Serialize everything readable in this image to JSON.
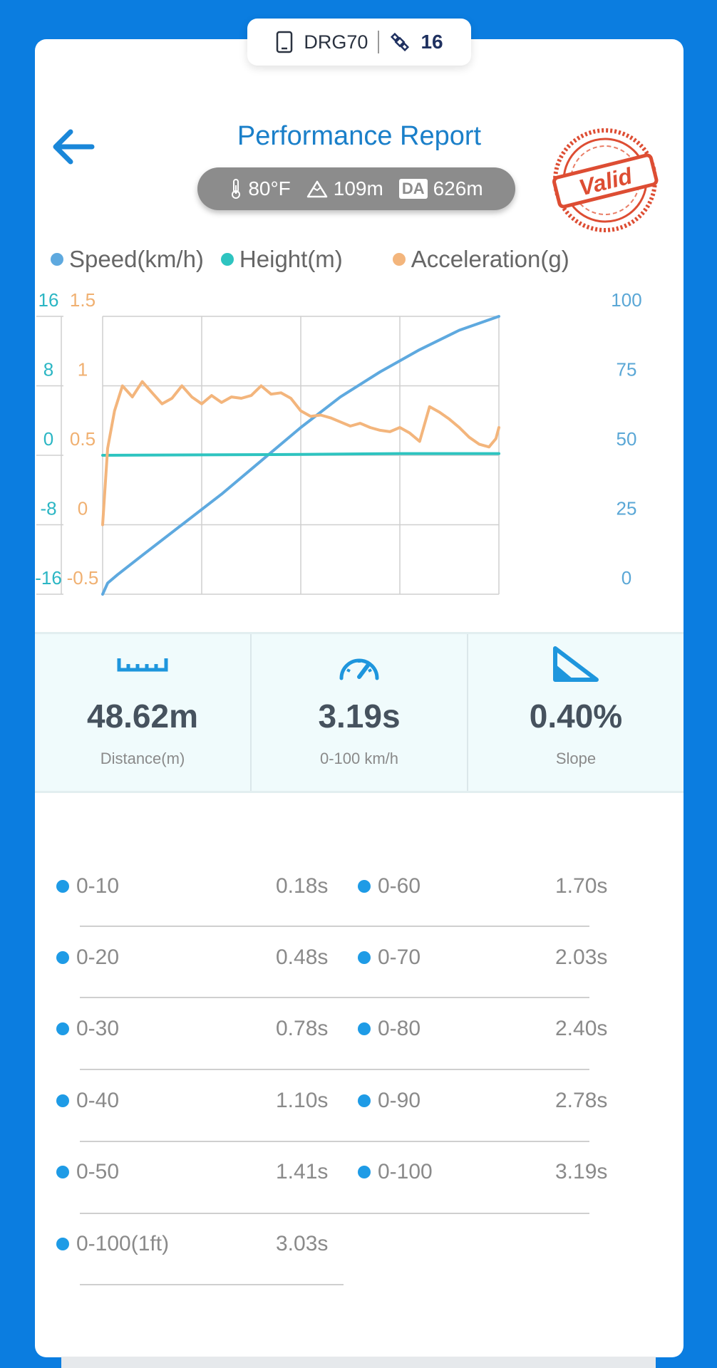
{
  "device": {
    "name": "DRG70",
    "satellites": "16",
    "icons": [
      "phone-icon",
      "satellite-icon"
    ]
  },
  "header": {
    "title": "Performance Report",
    "stamp_text": "Valid"
  },
  "conditions": {
    "temperature": "80°F",
    "altitude": "109m",
    "da_label": "DA",
    "density_altitude": "626m"
  },
  "legend": [
    {
      "label": "Speed(km/h)",
      "color": "#5ea9df"
    },
    {
      "label": "Height(m)",
      "color": "#2ec4c0"
    },
    {
      "label": "Acceleration(g)",
      "color": "#f3b57c"
    }
  ],
  "chart_data": {
    "type": "line",
    "x": [
      0,
      1,
      2,
      3,
      4
    ],
    "grid": true,
    "axes": {
      "left_outer": {
        "ticks": [
          "16",
          "8",
          "0",
          "-8",
          "-16"
        ],
        "range": [
          -16,
          16
        ],
        "color": "#2bb6c4"
      },
      "left_inner": {
        "ticks": [
          "1.5",
          "1",
          "0.5",
          "0",
          "-0.5"
        ],
        "range": [
          -0.5,
          1.5
        ],
        "color": "#f0b071"
      },
      "right": {
        "ticks": [
          "100",
          "75",
          "50",
          "25",
          "0"
        ],
        "range": [
          0,
          100
        ],
        "color": "#5aa7d6"
      }
    },
    "series": [
      {
        "name": "Speed(km/h)",
        "axis": "right",
        "color": "#5ea9df",
        "x": [
          0,
          0.05,
          0.15,
          0.4,
          0.8,
          1.2,
          1.6,
          2.0,
          2.4,
          2.8,
          3.2,
          3.6,
          4.0
        ],
        "y": [
          0,
          4,
          7,
          14,
          25,
          36,
          48,
          60,
          71,
          80,
          88,
          95,
          100
        ]
      },
      {
        "name": "Height(m)",
        "axis": "left_outer",
        "color": "#2ec4c0",
        "x": [
          0,
          1,
          2,
          3,
          4
        ],
        "y": [
          0,
          0.05,
          0.1,
          0.2,
          0.2
        ]
      },
      {
        "name": "Acceleration(g)",
        "axis": "left_inner",
        "color": "#f3b57c",
        "x": [
          0,
          0.05,
          0.12,
          0.2,
          0.3,
          0.4,
          0.5,
          0.6,
          0.7,
          0.8,
          0.9,
          1.0,
          1.1,
          1.2,
          1.3,
          1.4,
          1.5,
          1.6,
          1.7,
          1.8,
          1.9,
          2.0,
          2.1,
          2.2,
          2.3,
          2.4,
          2.5,
          2.6,
          2.7,
          2.8,
          2.9,
          3.0,
          3.1,
          3.2,
          3.3,
          3.4,
          3.5,
          3.6,
          3.7,
          3.8,
          3.9,
          3.97,
          4.0
        ],
        "y": [
          0,
          0.55,
          0.82,
          1.0,
          0.92,
          1.03,
          0.95,
          0.87,
          0.91,
          1.0,
          0.92,
          0.87,
          0.93,
          0.88,
          0.92,
          0.91,
          0.93,
          1.0,
          0.94,
          0.95,
          0.91,
          0.82,
          0.78,
          0.79,
          0.77,
          0.74,
          0.71,
          0.73,
          0.7,
          0.68,
          0.67,
          0.7,
          0.66,
          0.6,
          0.85,
          0.81,
          0.76,
          0.7,
          0.63,
          0.58,
          0.56,
          0.62,
          0.7
        ]
      }
    ]
  },
  "stats": [
    {
      "value": "48.62m",
      "label": "Distance(m)",
      "icon": "ruler-icon"
    },
    {
      "value": "3.19s",
      "label": "0-100 km/h",
      "icon": "speedometer-icon"
    },
    {
      "value": "0.40%",
      "label": "Slope",
      "icon": "slope-icon"
    }
  ],
  "splits_left": [
    {
      "range": "0-10",
      "time": "0.18s"
    },
    {
      "range": "0-20",
      "time": "0.48s"
    },
    {
      "range": "0-30",
      "time": "0.78s"
    },
    {
      "range": "0-40",
      "time": "1.10s"
    },
    {
      "range": "0-50",
      "time": "1.41s"
    },
    {
      "range": "0-100(1ft)",
      "time": "3.03s"
    }
  ],
  "splits_right": [
    {
      "range": "0-60",
      "time": "1.70s"
    },
    {
      "range": "0-70",
      "time": "2.03s"
    },
    {
      "range": "0-80",
      "time": "2.40s"
    },
    {
      "range": "0-90",
      "time": "2.78s"
    },
    {
      "range": "0-100",
      "time": "3.19s"
    }
  ]
}
